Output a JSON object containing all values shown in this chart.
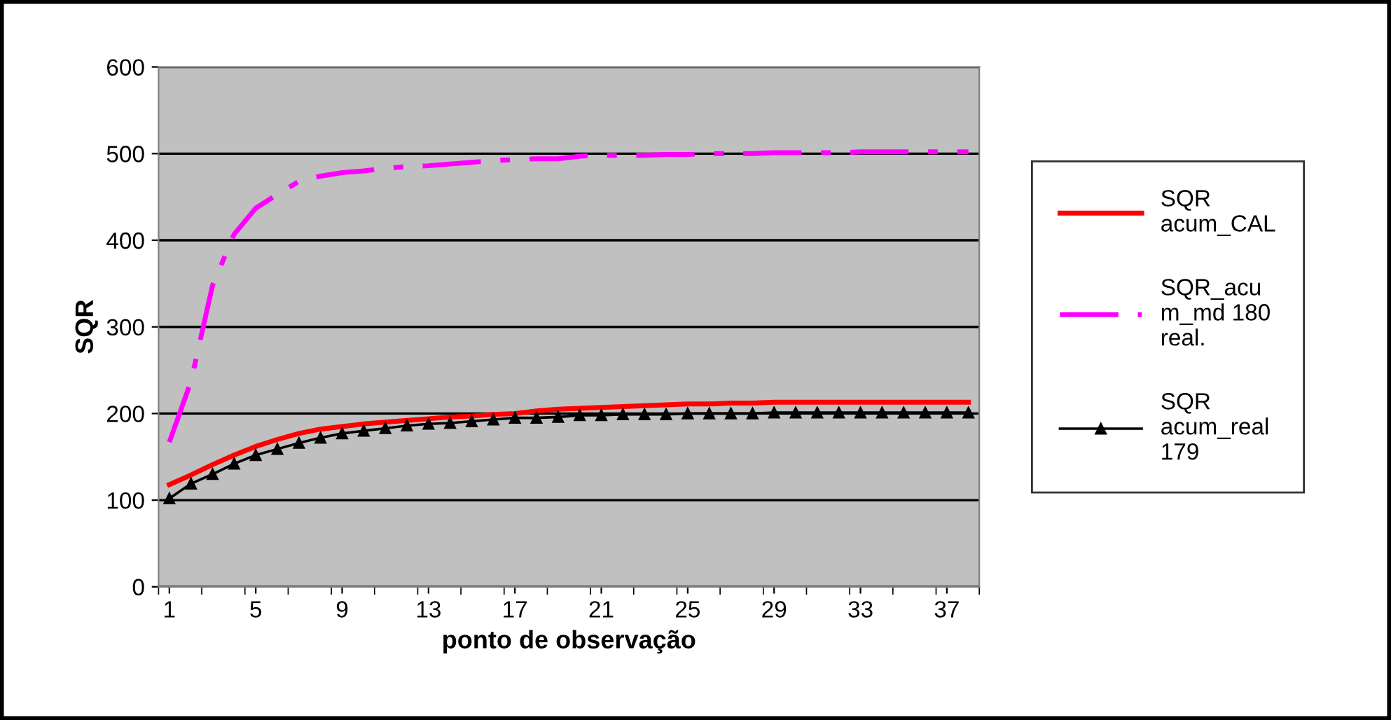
{
  "chart_data": {
    "type": "line",
    "xlabel": "ponto de observação",
    "ylabel": "SQR",
    "categories": [
      "1",
      null,
      null,
      null,
      "5",
      null,
      null,
      null,
      "9",
      null,
      null,
      null,
      "13",
      null,
      null,
      null,
      "17",
      null,
      null,
      null,
      "21",
      null,
      null,
      null,
      "25",
      null,
      null,
      null,
      "29",
      null,
      null,
      null,
      "33",
      null,
      null,
      null,
      "37",
      null
    ],
    "ylim": [
      0,
      600
    ],
    "yticks": [
      0,
      100,
      200,
      300,
      400,
      500,
      600
    ],
    "grid": "y",
    "legend": "right",
    "series": [
      {
        "name": "SQR\nacum_CAL",
        "color": "#ff0000",
        "line_style": "solid",
        "marker": "none",
        "values": [
          118,
          129,
          141,
          152,
          162,
          170,
          177,
          182,
          185,
          188,
          190,
          192,
          194,
          196,
          197,
          199,
          200,
          203,
          205,
          206,
          207,
          208,
          209,
          210,
          211,
          211,
          212,
          212,
          213,
          213,
          213,
          213,
          213,
          213,
          213,
          213,
          213,
          213
        ]
      },
      {
        "name": "SQR_acu\nm_md 180\nreal.",
        "color": "#ff00ff",
        "line_style": "dashdot",
        "marker": "none",
        "values": [
          167,
          237,
          348,
          407,
          437,
          453,
          468,
          474,
          478,
          480,
          483,
          485,
          486,
          488,
          490,
          492,
          493,
          494,
          494,
          497,
          498,
          498,
          498,
          499,
          499,
          500,
          500,
          500,
          501,
          501,
          501,
          501,
          502,
          502,
          502,
          502,
          502,
          502
        ]
      },
      {
        "name": "SQR\nacum_real\n179",
        "color": "#000000",
        "line_style": "solid",
        "marker": "triangle",
        "values": [
          102,
          119,
          130,
          142,
          152,
          159,
          166,
          172,
          177,
          180,
          183,
          186,
          188,
          189,
          191,
          193,
          195,
          195,
          196,
          198,
          198,
          199,
          199,
          199,
          200,
          200,
          200,
          200,
          201,
          201,
          201,
          201,
          201,
          201,
          201,
          201,
          201,
          201
        ]
      }
    ]
  }
}
